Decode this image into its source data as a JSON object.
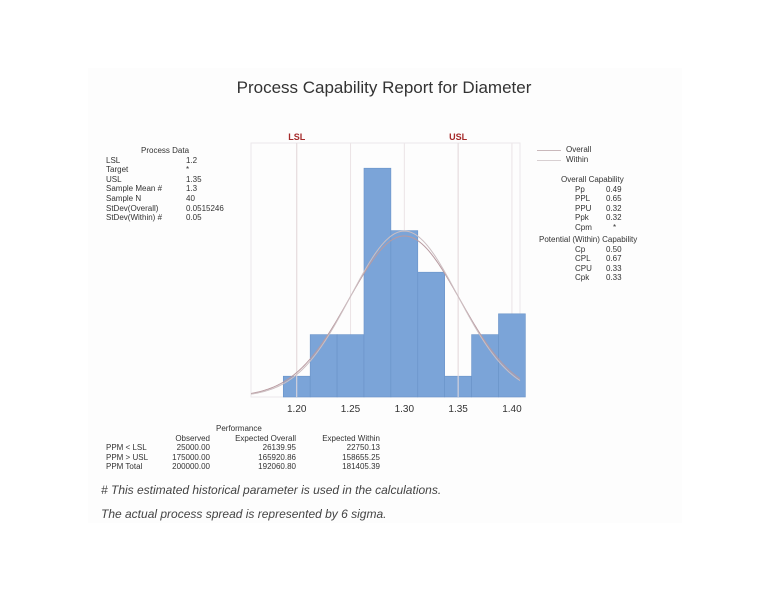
{
  "title": "Process Capability Report for Diameter",
  "process_data": {
    "header": "Process Data",
    "rows": [
      {
        "label": "LSL",
        "value": "1.2"
      },
      {
        "label": "Target",
        "value": "*"
      },
      {
        "label": "USL",
        "value": "1.35"
      },
      {
        "label": "Sample Mean #",
        "value": "1.3"
      },
      {
        "label": "Sample N",
        "value": "40"
      },
      {
        "label": "StDev(Overall)",
        "value": "0.0515246"
      },
      {
        "label": "StDev(Within) #",
        "value": "0.05"
      }
    ]
  },
  "legend": {
    "items": [
      {
        "label": "Overall",
        "color": "#c9b8bb"
      },
      {
        "label": "Within",
        "color": "#d8d0d2"
      }
    ]
  },
  "overall_capability": {
    "header": "Overall Capability",
    "rows": [
      {
        "label": "Pp",
        "value": "0.49"
      },
      {
        "label": "PPL",
        "value": "0.65"
      },
      {
        "label": "PPU",
        "value": "0.32"
      },
      {
        "label": "Ppk",
        "value": "0.32"
      },
      {
        "label": "Cpm",
        "value": "*"
      }
    ]
  },
  "within_capability": {
    "header": "Potential (Within) Capability",
    "rows": [
      {
        "label": "Cp",
        "value": "0.50"
      },
      {
        "label": "CPL",
        "value": "0.67"
      },
      {
        "label": "CPU",
        "value": "0.33"
      },
      {
        "label": "Cpk",
        "value": "0.33"
      }
    ]
  },
  "performance": {
    "header": "Performance",
    "columns": [
      "Observed",
      "Expected Overall",
      "Expected Within"
    ],
    "rows": [
      {
        "label": "PPM < LSL",
        "values": [
          "25000.00",
          "26139.95",
          "22750.13"
        ]
      },
      {
        "label": "PPM > USL",
        "values": [
          "175000.00",
          "165920.86",
          "158655.25"
        ]
      },
      {
        "label": "PPM Total",
        "values": [
          "200000.00",
          "192060.80",
          "181405.39"
        ]
      }
    ]
  },
  "footnotes": [
    "# This estimated historical parameter is used in the calculations.",
    "The actual process spread is represented by 6 sigma."
  ],
  "colors": {
    "bar": "#7ba4d8",
    "bar_edge": "#6a93c8",
    "spec_limit": "#a52a2a",
    "curve_overall": "#b89aa0",
    "curve_within": "#cdbfc2",
    "grid": "#ebe4e6"
  },
  "chart_data": {
    "type": "bar",
    "subtype": "histogram",
    "title": "Process Capability Report for Diameter",
    "xlabel": "",
    "ylabel": "",
    "bin_width": 0.025,
    "bin_starts": [
      1.1875,
      1.2125,
      1.2375,
      1.2625,
      1.2875,
      1.3125,
      1.3375,
      1.3625,
      1.3875
    ],
    "categories": [
      "1.200",
      "1.225",
      "1.250",
      "1.275",
      "1.300",
      "1.325",
      "1.350",
      "1.375",
      "1.400"
    ],
    "values": [
      1,
      3,
      3,
      11,
      8,
      6,
      1,
      3,
      4
    ],
    "xticks": [
      "1.20",
      "1.25",
      "1.30",
      "1.35",
      "1.40"
    ],
    "xtick_values": [
      1.2,
      1.25,
      1.3,
      1.35,
      1.4
    ],
    "xlim": [
      1.1575,
      1.4075
    ],
    "ylim": [
      0,
      12
    ],
    "spec_limits": [
      {
        "label": "LSL",
        "value": 1.2
      },
      {
        "label": "USL",
        "value": 1.35
      }
    ],
    "curves": [
      {
        "name": "Overall",
        "mean": 1.3,
        "stdev": 0.0515246
      },
      {
        "name": "Within",
        "mean": 1.3,
        "stdev": 0.05
      }
    ],
    "legend_position": "right",
    "grid": true
  }
}
